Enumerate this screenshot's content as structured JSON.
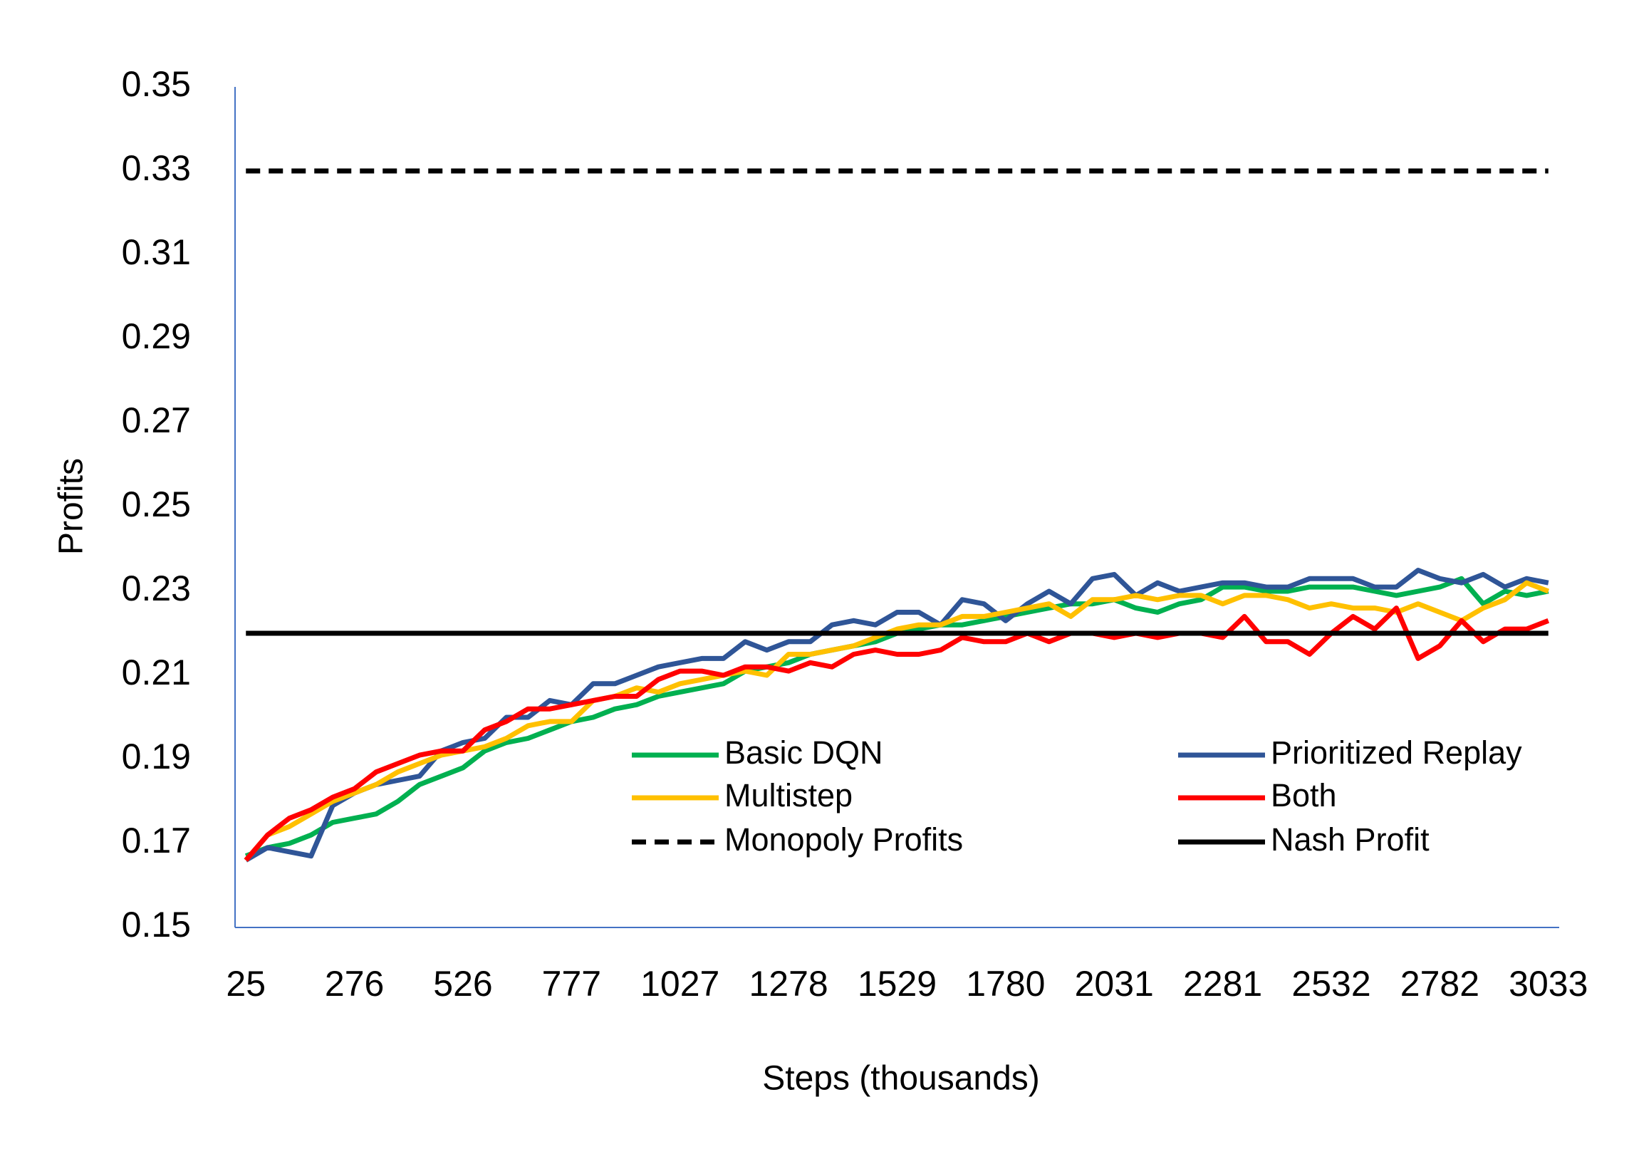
{
  "chart_data": {
    "type": "line",
    "xlabel": "Steps (thousands)",
    "ylabel": "Profits",
    "categories": [
      "25",
      null,
      null,
      null,
      null,
      "276",
      null,
      null,
      null,
      null,
      "526",
      null,
      null,
      null,
      null,
      "777",
      null,
      null,
      null,
      null,
      "1027",
      null,
      null,
      null,
      null,
      "1278",
      null,
      null,
      null,
      null,
      "1529",
      null,
      null,
      null,
      null,
      "1780",
      null,
      null,
      null,
      null,
      "2031",
      null,
      null,
      null,
      null,
      "2281",
      null,
      null,
      null,
      null,
      "2532",
      null,
      null,
      null,
      null,
      "2782",
      null,
      null,
      null,
      null,
      "3033"
    ],
    "ylim": [
      0.15,
      0.35
    ],
    "yticks": [
      0.15,
      0.17,
      0.19,
      0.21,
      0.23,
      0.25,
      0.27,
      0.29,
      0.31,
      0.33,
      0.35
    ],
    "grid": false,
    "series": [
      {
        "name": "Basic DQN",
        "color": "#00b050",
        "values": [
          0.167,
          0.169,
          0.17,
          0.172,
          0.175,
          0.176,
          0.177,
          0.18,
          0.184,
          0.186,
          0.188,
          0.192,
          0.194,
          0.195,
          0.197,
          0.199,
          0.2,
          0.202,
          0.203,
          0.205,
          0.206,
          0.207,
          0.208,
          0.211,
          0.212,
          0.213,
          0.215,
          0.216,
          0.217,
          0.218,
          0.22,
          0.221,
          0.222,
          0.222,
          0.223,
          0.224,
          0.225,
          0.226,
          0.227,
          0.227,
          0.228,
          0.226,
          0.225,
          0.227,
          0.228,
          0.231,
          0.231,
          0.23,
          0.23,
          0.231,
          0.231,
          0.231,
          0.23,
          0.229,
          0.23,
          0.231,
          0.233,
          0.227,
          0.23,
          0.229,
          0.23
        ]
      },
      {
        "name": "Prioritized Replay",
        "color": "#2f5597",
        "values": [
          0.166,
          0.169,
          0.168,
          0.167,
          0.179,
          0.182,
          0.184,
          0.185,
          0.186,
          0.192,
          0.194,
          0.195,
          0.2,
          0.2,
          0.204,
          0.203,
          0.208,
          0.208,
          0.21,
          0.212,
          0.213,
          0.214,
          0.214,
          0.218,
          0.216,
          0.218,
          0.218,
          0.222,
          0.223,
          0.222,
          0.225,
          0.225,
          0.222,
          0.228,
          0.227,
          0.223,
          0.227,
          0.23,
          0.227,
          0.233,
          0.234,
          0.229,
          0.232,
          0.23,
          0.231,
          0.232,
          0.232,
          0.231,
          0.231,
          0.233,
          0.233,
          0.233,
          0.231,
          0.231,
          0.235,
          0.233,
          0.232,
          0.234,
          0.231,
          0.233,
          0.232
        ]
      },
      {
        "name": "Multistep",
        "color": "#ffc000",
        "values": [
          0.166,
          0.172,
          0.174,
          0.177,
          0.18,
          0.182,
          0.184,
          0.187,
          0.189,
          0.191,
          0.192,
          0.193,
          0.195,
          0.198,
          0.199,
          0.199,
          0.204,
          0.205,
          0.207,
          0.206,
          0.208,
          0.209,
          0.21,
          0.211,
          0.21,
          0.215,
          0.215,
          0.216,
          0.217,
          0.219,
          0.221,
          0.222,
          0.222,
          0.224,
          0.224,
          0.225,
          0.226,
          0.227,
          0.224,
          0.228,
          0.228,
          0.229,
          0.228,
          0.229,
          0.229,
          0.227,
          0.229,
          0.229,
          0.228,
          0.226,
          0.227,
          0.226,
          0.226,
          0.225,
          0.227,
          0.225,
          0.223,
          0.226,
          0.228,
          0.232,
          0.23
        ]
      },
      {
        "name": "Both",
        "color": "#ff0000",
        "values": [
          0.166,
          0.172,
          0.176,
          0.178,
          0.181,
          0.183,
          0.187,
          0.189,
          0.191,
          0.192,
          0.192,
          0.197,
          0.199,
          0.202,
          0.202,
          0.203,
          0.204,
          0.205,
          0.205,
          0.209,
          0.211,
          0.211,
          0.21,
          0.212,
          0.212,
          0.211,
          0.213,
          0.212,
          0.215,
          0.216,
          0.215,
          0.215,
          0.216,
          0.219,
          0.218,
          0.218,
          0.22,
          0.218,
          0.22,
          0.22,
          0.219,
          0.22,
          0.219,
          0.22,
          0.22,
          0.219,
          0.224,
          0.218,
          0.218,
          0.215,
          0.22,
          0.224,
          0.221,
          0.226,
          0.214,
          0.217,
          0.223,
          0.218,
          0.221,
          0.221,
          0.223
        ]
      }
    ],
    "reference_lines": [
      {
        "name": "Monopoly Profits",
        "value": 0.33,
        "color": "#000000",
        "style": "dashed"
      },
      {
        "name": "Nash Profit",
        "value": 0.22,
        "color": "#000000",
        "style": "solid"
      }
    ]
  }
}
